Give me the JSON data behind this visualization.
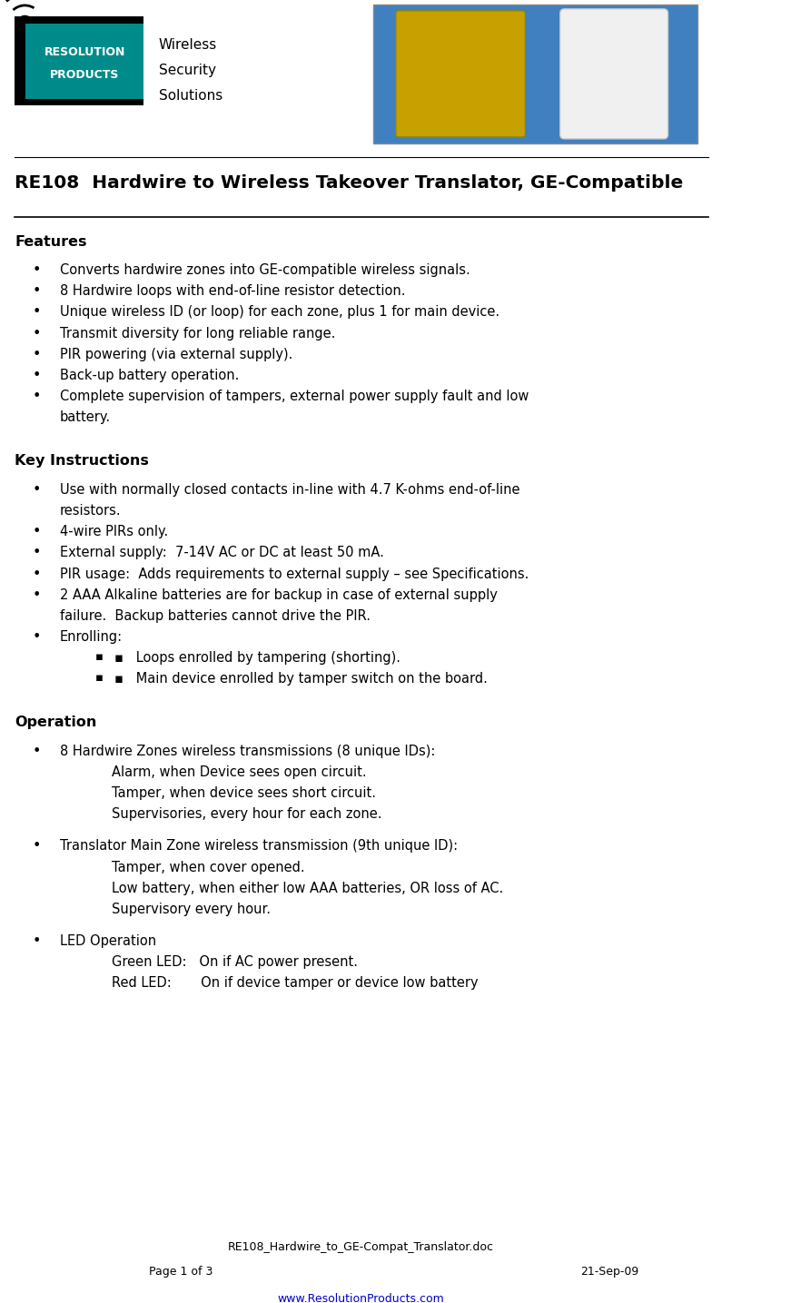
{
  "bg_color": "#ffffff",
  "title": "RE108  Hardwire to Wireless Takeover Translator, GE-Compatible",
  "sections": [
    {
      "heading": "Features",
      "bullets": [
        "Converts hardwire zones into GE-compatible wireless signals.",
        "8 Hardwire loops with end-of-line resistor detection.",
        "Unique wireless ID (or loop) for each zone, plus 1 for main device.",
        "Transmit diversity for long reliable range.",
        "PIR powering (via external supply).",
        "Back-up battery operation.",
        "Complete supervision of tampers, external power supply fault and low\n        battery."
      ]
    },
    {
      "heading": "Key Instructions",
      "bullets": [
        "Use with normally closed contacts in-line with 4.7 K-ohms end-of-line\n        resistors.",
        "4-wire PIRs only.",
        "External supply:  7-14V AC or DC at least 50 mA.",
        "PIR usage:  Adds requirements to external supply – see Specifications.",
        "2 AAA Alkaline batteries are for backup in case of external supply\n        failure.  Backup batteries cannot drive the PIR.",
        "Enrolling:\n▪   Loops enrolled by tampering (shorting).\n▪   Main device enrolled by tamper switch on the board."
      ]
    },
    {
      "heading": "Operation",
      "bullets": [
        "8 Hardwire Zones wireless transmissions (8 unique IDs):\n            Alarm, when Device sees open circuit.\n            Tamper, when device sees short circuit.\n            Supervisories, every hour for each zone.",
        "Translator Main Zone wireless transmission (9th unique ID):\n            Tamper, when cover opened.\n            Low battery, when either low AAA batteries, OR loss of AC.\n            Supervisory every hour.",
        "LED Operation\n            Green LED:   On if AC power present.\n            Red LED:       On if device tamper or device low battery"
      ]
    }
  ],
  "footer_line1": "RE108_Hardwire_to_GE-Compat_Translator.doc",
  "footer_line2_left": "Page 1 of 3",
  "footer_line2_right": "21-Sep-09",
  "footer_url": "www.ResolutionProducts.com",
  "logo_text_line1": "Wireless",
  "logo_text_line2": "Security",
  "logo_text_line3": "Solutions"
}
